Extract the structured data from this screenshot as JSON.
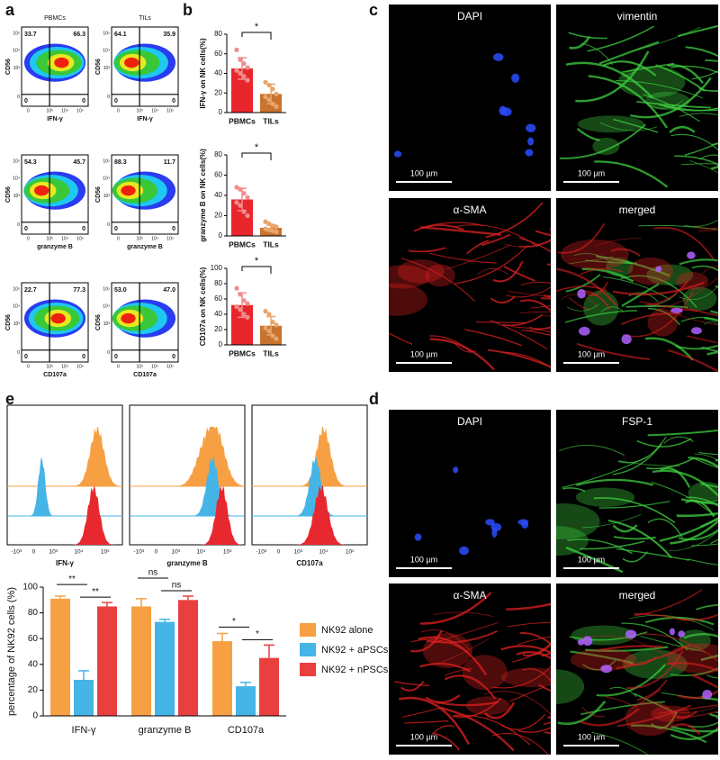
{
  "panel_labels": [
    "a",
    "b",
    "c",
    "d",
    "e"
  ],
  "flow": {
    "columns": [
      "PBMCs",
      "TILs"
    ],
    "y_label": "CD56",
    "ticks": [
      "0",
      "10³",
      "10⁴",
      "10⁵"
    ],
    "rows": [
      {
        "x_label": "IFN-γ",
        "quadrants": [
          [
            "33.7",
            "66.3",
            "0",
            "0"
          ],
          [
            "64.1",
            "35.9",
            "0",
            "0"
          ]
        ]
      },
      {
        "x_label": "granzyme B",
        "quadrants": [
          [
            "54.3",
            "45.7",
            "0",
            "0"
          ],
          [
            "88.3",
            "11.7",
            "0",
            "0"
          ]
        ]
      },
      {
        "x_label": "CD107a",
        "quadrants": [
          [
            "22.7",
            "77.3",
            "0",
            "0"
          ],
          [
            "53.0",
            "47.0",
            "0",
            "0"
          ]
        ]
      }
    ]
  },
  "chart_data": [
    {
      "type": "bar",
      "y_label": "IFN-γ on NK cells(%)",
      "categories": [
        "PBMCs",
        "TILs"
      ],
      "values": [
        45,
        19
      ],
      "errors": [
        11,
        10
      ],
      "points": [
        [
          64,
          54,
          50,
          46,
          43,
          40,
          37,
          33
        ],
        [
          31,
          28,
          24,
          19,
          16,
          13,
          9,
          6
        ]
      ],
      "colors": [
        "#e8262c",
        "#c8732e"
      ],
      "point_colors": [
        "#f08c8c",
        "#e8a56c"
      ],
      "ylim": [
        0,
        80
      ],
      "yticks": [
        0,
        20,
        40,
        60,
        80
      ],
      "significance": "*"
    },
    {
      "type": "bar",
      "y_label": "granzyme B on NK cells(%)",
      "categories": [
        "PBMCs",
        "TILs"
      ],
      "values": [
        36,
        8
      ],
      "errors": [
        11,
        3
      ],
      "points": [
        [
          48,
          46,
          42,
          38,
          33,
          30,
          24,
          20
        ],
        [
          14,
          12,
          10,
          9,
          7,
          6,
          5,
          4
        ]
      ],
      "colors": [
        "#e8262c",
        "#c8732e"
      ],
      "point_colors": [
        "#f08c8c",
        "#e8a56c"
      ],
      "ylim": [
        0,
        80
      ],
      "yticks": [
        0,
        20,
        40,
        60,
        80
      ],
      "significance": "*"
    },
    {
      "type": "bar",
      "y_label": "CD107a on NK cells(%)",
      "categories": [
        "PBMCs",
        "TILs"
      ],
      "values": [
        52,
        25
      ],
      "errors": [
        16,
        12
      ],
      "points": [
        [
          74,
          66,
          58,
          54,
          50,
          46,
          40,
          36
        ],
        [
          44,
          40,
          30,
          26,
          22,
          18,
          12,
          8
        ]
      ],
      "colors": [
        "#e8262c",
        "#c8732e"
      ],
      "point_colors": [
        "#f08c8c",
        "#e8a56c"
      ],
      "ylim": [
        0,
        100
      ],
      "yticks": [
        0,
        20,
        40,
        60,
        80,
        100
      ],
      "significance": "*"
    },
    {
      "type": "grouped_bar",
      "y_label": "percentage of NK92 cells (%)",
      "categories": [
        "IFN-γ",
        "granzyme B",
        "CD107a"
      ],
      "series": [
        {
          "name": "NK92 alone",
          "color": "#f7a043",
          "values": [
            91,
            85,
            58
          ],
          "errors": [
            2,
            6,
            6
          ]
        },
        {
          "name": "NK92 + aPSCs",
          "color": "#45b4e6",
          "values": [
            28,
            73,
            23
          ],
          "errors": [
            7,
            2,
            3
          ]
        },
        {
          "name": "NK92 + nPSCs",
          "color": "#e8403f",
          "values": [
            85,
            90,
            45
          ],
          "errors": [
            3,
            3,
            10
          ]
        }
      ],
      "ylim": [
        0,
        100
      ],
      "yticks": [
        0,
        20,
        40,
        60,
        80,
        100
      ],
      "significance": [
        [
          "**",
          "**"
        ],
        [
          "ns",
          "ns"
        ],
        [
          "*",
          "*"
        ]
      ]
    }
  ],
  "histograms": {
    "x_labels": [
      "IFN-γ",
      "granzyme B",
      "CD107a"
    ],
    "ticks": [
      "-10³",
      "0",
      "10³",
      "10⁴",
      "10⁵"
    ]
  },
  "images": {
    "scale_bar": "100 µm",
    "c": [
      "DAPI",
      "vimentin",
      "α-SMA",
      "merged"
    ],
    "d": [
      "DAPI",
      "FSP-1",
      "α-SMA",
      "merged"
    ]
  }
}
